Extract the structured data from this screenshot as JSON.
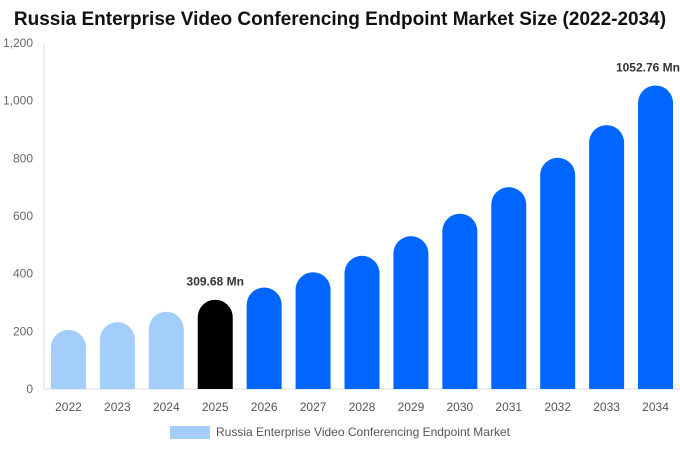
{
  "chart_data": {
    "type": "bar",
    "title": "Russia Enterprise Video Conferencing Endpoint Market Size (2022-2034)",
    "xlabel": "",
    "ylabel": "",
    "categories": [
      "2022",
      "2023",
      "2024",
      "2025",
      "2026",
      "2027",
      "2028",
      "2029",
      "2030",
      "2031",
      "2032",
      "2033",
      "2034"
    ],
    "series": [
      {
        "name": "Russia Enterprise Video Conferencing Endpoint Market",
        "values": [
          205,
          232,
          268,
          309.68,
          352,
          405,
          462,
          530,
          608,
          700,
          802,
          915,
          1052.76
        ]
      }
    ],
    "ylim": [
      0,
      1200
    ],
    "yticks": [
      0,
      200,
      400,
      600,
      800,
      1000,
      1200
    ],
    "ytick_labels": [
      "0",
      "200",
      "400",
      "600",
      "800",
      "1,000",
      "1,200"
    ],
    "data_labels": [
      {
        "category": "2025",
        "text": "309.68 Mn"
      },
      {
        "category": "2034",
        "text": "1052.76 Mn"
      }
    ],
    "bar_colors": {
      "historical": "#a3cdfb",
      "current": "#000000",
      "forecast": "#0066ff"
    },
    "bar_color_by_category": [
      "#a3cdfb",
      "#a3cdfb",
      "#a3cdfb",
      "#000000",
      "#0066ff",
      "#0066ff",
      "#0066ff",
      "#0066ff",
      "#0066ff",
      "#0066ff",
      "#0066ff",
      "#0066ff",
      "#0066ff"
    ],
    "legend": {
      "label": "Russia Enterprise Video Conferencing Endpoint Market",
      "color": "#a3cdfb",
      "placement": "bottom"
    },
    "grid": false
  }
}
